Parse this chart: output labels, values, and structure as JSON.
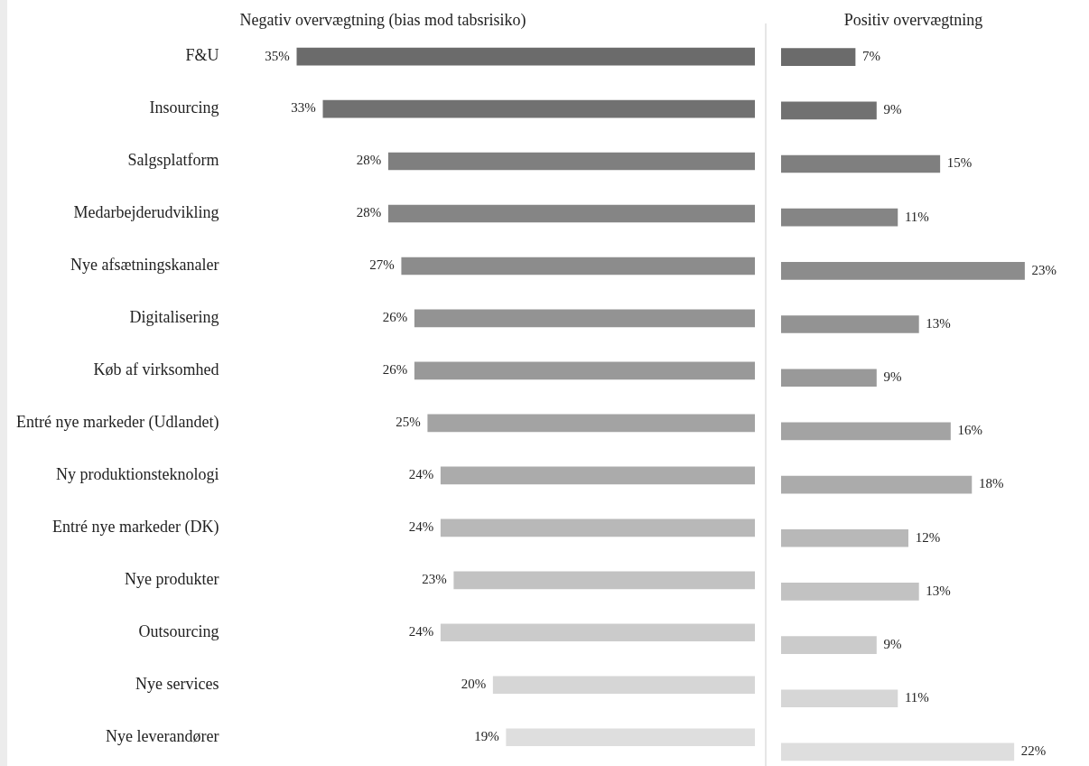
{
  "chart_data": [
    {
      "type": "bar",
      "orientation": "horizontal",
      "title": "Negativ overvægtning (bias mod tabsrisiko)",
      "tick_labels": "y",
      "categories": [
        "F&U",
        "Insourcing",
        "Salgsplatform",
        "Medarbejderudvikling",
        "Nye afsætningskanaler",
        "Digitalisering",
        "Køb af virksomhed",
        "Entré nye markeder (Udlandet)",
        "Ny produktionsteknologi",
        "Entré nye markeder (DK)",
        "Nye produkter",
        "Outsourcing",
        "Nye services",
        "Nye leverandører"
      ],
      "values": [
        35,
        33,
        28,
        28,
        27,
        26,
        26,
        25,
        24,
        24,
        23,
        24,
        20,
        19
      ],
      "value_labels": [
        "35%",
        "33%",
        "28%",
        "28%",
        "27%",
        "26%",
        "26%",
        "25%",
        "24%",
        "24%",
        "23%",
        "24%",
        "20%",
        "19%"
      ],
      "colors": [
        "#6b6b6b",
        "#717171",
        "#7f7f7f",
        "#858585",
        "#8c8c8c",
        "#939393",
        "#999999",
        "#a3a3a3",
        "#ababab",
        "#b8b8b8",
        "#c2c2c2",
        "#cbcbcb",
        "#d6d6d6",
        "#dedede"
      ]
    },
    {
      "type": "bar",
      "orientation": "horizontal",
      "title": "Positiv overvægtning",
      "tick_labels": false,
      "categories": [
        null,
        null,
        null,
        null,
        null,
        null,
        null,
        null,
        null,
        null,
        null,
        null,
        null,
        null
      ],
      "values": [
        7,
        9,
        15,
        11,
        23,
        13,
        9,
        16,
        18,
        12,
        13,
        9,
        11,
        22
      ],
      "value_labels": [
        "7%",
        "9%",
        "15%",
        "11%",
        "23%",
        "13%",
        "9%",
        "16%",
        "18%",
        "12%",
        "13%",
        "9%",
        "11%",
        "22%"
      ],
      "colors": [
        "#6b6b6b",
        "#717171",
        "#7f7f7f",
        "#858585",
        "#8c8c8c",
        "#939393",
        "#999999",
        "#a3a3a3",
        "#ababab",
        "#b8b8b8",
        "#c2c2c2",
        "#cbcbcb",
        "#d6d6d6",
        "#dedede"
      ]
    }
  ]
}
